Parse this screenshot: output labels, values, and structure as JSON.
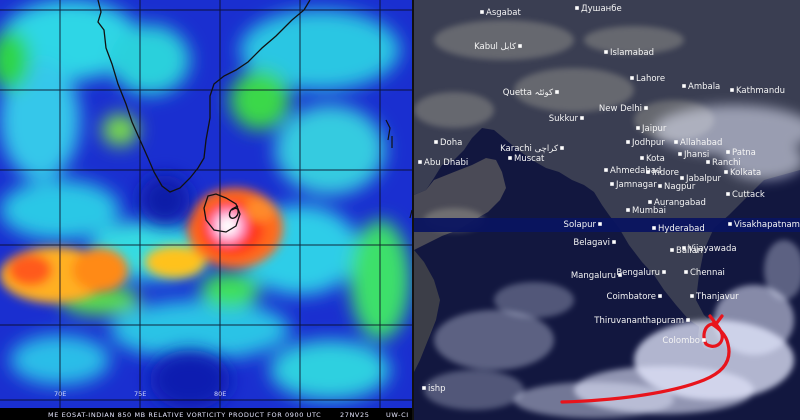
{
  "left_panel": {
    "caption": "ME EOSAT-INDIAN 850 MB RELATIVE VORTICITY PRODUCT FOR 0900 UTC",
    "date": "27NV25",
    "source": "UW-CI",
    "lon_labels": [
      "70E",
      "75E",
      "80E"
    ],
    "colors": {
      "low": "#0a1fd8",
      "mid": "#2fd6e6",
      "green": "#35d93b",
      "high": "#ff3a1f",
      "peak": "#ffffff"
    }
  },
  "right_panel": {
    "cities": [
      {
        "name": "Asgabat"
      },
      {
        "name": "Душанбе"
      },
      {
        "name": "Kabul کابل"
      },
      {
        "name": "Islamabad"
      },
      {
        "name": "Lahore"
      },
      {
        "name": "Ambala"
      },
      {
        "name": "Quetta کوئٹہ"
      },
      {
        "name": "New Delhi"
      },
      {
        "name": "Kathmandu"
      },
      {
        "name": "Sukkur"
      },
      {
        "name": "Jaipur"
      },
      {
        "name": "Doha"
      },
      {
        "name": "Abu Dhabi"
      },
      {
        "name": "Muscat"
      },
      {
        "name": "Karachi کراچی"
      },
      {
        "name": "Jodhpur"
      },
      {
        "name": "Allahabad"
      },
      {
        "name": "Patna"
      },
      {
        "name": "Kota"
      },
      {
        "name": "Jhansi"
      },
      {
        "name": "Ranchi"
      },
      {
        "name": "Kolkata"
      },
      {
        "name": "Ahmedabad"
      },
      {
        "name": "Indore"
      },
      {
        "name": "Jabalpur"
      },
      {
        "name": "Jamnagar"
      },
      {
        "name": "Nagpur"
      },
      {
        "name": "Cuttack"
      },
      {
        "name": "Mumbai"
      },
      {
        "name": "Aurangabad"
      },
      {
        "name": "Visakhapatnam"
      },
      {
        "name": "Solapur"
      },
      {
        "name": "Hyderabad"
      },
      {
        "name": "Belagavi"
      },
      {
        "name": "Ballari"
      },
      {
        "name": "Vijayawada"
      },
      {
        "name": "Mangaluru"
      },
      {
        "name": "Bengaluru"
      },
      {
        "name": "Chennai"
      },
      {
        "name": "Coimbatore"
      },
      {
        "name": "Thanjavur"
      },
      {
        "name": "Thiruvananthapuram"
      },
      {
        "name": "Colombo"
      },
      {
        "name": "ishp"
      }
    ],
    "track_color": "#e8141c"
  }
}
